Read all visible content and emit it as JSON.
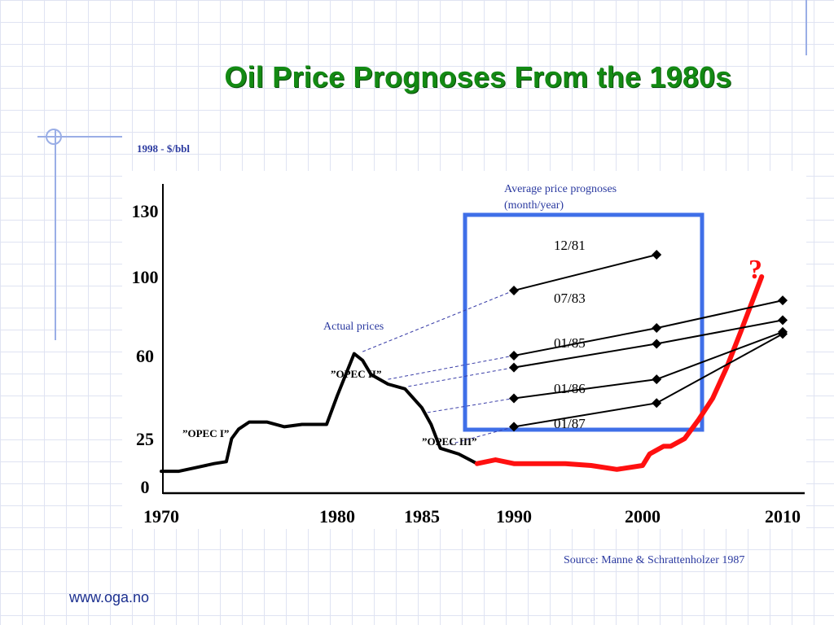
{
  "title": "Oil Price Prognoses From the 1980s",
  "footer_url": "www.oga.no",
  "source": "Source: Manne & Schrattenholzer 1987",
  "colors": {
    "title": "#138a13",
    "grid": "#dfe3f2",
    "accent_blue": "#3f6fe8",
    "label_blue": "#2b3aa0",
    "actual_line": "#000000",
    "recent_line": "#ff1010"
  },
  "chart_data": {
    "type": "line",
    "title": "",
    "ylabel": "1998 - $/bbl",
    "xlabel": "",
    "x_ticks": [
      "1970",
      "1980",
      "1985",
      "1990",
      "2000",
      "2010"
    ],
    "y_ticks": [
      "0",
      "25",
      "60",
      "100",
      "130"
    ],
    "annotations": {
      "actual_prices": "Actual prices",
      "prognoses_box": "Average price prognoses (month/year)",
      "opec1": "”OPEC I”",
      "opec2": "”OPEC II”",
      "opec3": "”OPEC III”",
      "question": "?"
    },
    "series": [
      {
        "name": "Actual prices",
        "x": [
          1970,
          1971,
          1972,
          1973,
          1973.7,
          1974,
          1974.4,
          1975,
          1976,
          1977,
          1978,
          1979,
          1979.4,
          1980,
          1981,
          1981.5,
          1982,
          1983,
          1984,
          1985,
          1985.5,
          1986,
          1987,
          1988
        ],
        "y": [
          8,
          8,
          10,
          12,
          13,
          25,
          29,
          32,
          32,
          30,
          31,
          31,
          31,
          43,
          61,
          58,
          52,
          48,
          46,
          38,
          31,
          20,
          17,
          12
        ]
      },
      {
        "name": "Recent prices",
        "x": [
          1988,
          1989,
          1990,
          1992,
          1994,
          1996,
          1998,
          2000,
          2000.5,
          2001.5,
          2002,
          2003,
          2004,
          2005,
          2006,
          2007,
          2008.5
        ],
        "y": [
          12,
          14,
          12,
          12,
          12,
          11,
          9,
          11,
          17,
          21,
          21,
          25,
          33,
          42,
          55,
          72,
          100
        ]
      },
      {
        "name": "12/81",
        "x": [
          1990,
          2001
        ],
        "y": [
          93,
          110
        ]
      },
      {
        "name": "07/83",
        "x": [
          1990,
          2001,
          2010
        ],
        "y": [
          60,
          74,
          88
        ]
      },
      {
        "name": "01/85",
        "x": [
          1990,
          2001,
          2010
        ],
        "y": [
          55,
          66,
          78
        ]
      },
      {
        "name": "01/86",
        "x": [
          1990,
          2001,
          2010
        ],
        "y": [
          42,
          50,
          72
        ]
      },
      {
        "name": "01/87",
        "x": [
          1990,
          2001,
          2010
        ],
        "y": [
          30,
          40,
          71
        ]
      }
    ]
  }
}
